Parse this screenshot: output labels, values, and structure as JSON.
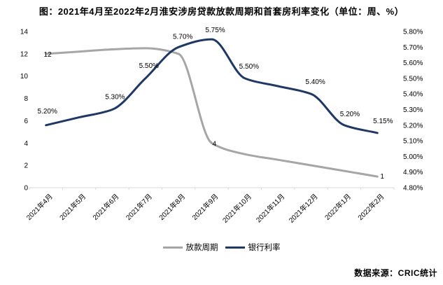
{
  "title": "图：2021年4月至2022年2月淮安涉房贷款放款周期和首套房利率变化（单位：周、%）",
  "source": "数据来源：CRIC统计",
  "legend": {
    "series": [
      {
        "label": "放款周期",
        "color": "#a6a6a6"
      },
      {
        "label": "银行利率",
        "color": "#1f3864"
      }
    ]
  },
  "chart_data": {
    "type": "line",
    "title": "图：2021年4月至2022年2月淮安涉房贷款放款周期和首套房利率变化（单位：周、%）",
    "categories": [
      "2021年4月",
      "2021年5月",
      "2021年6月",
      "2021年7月",
      "2021年8月",
      "2021年9月",
      "2021年10月",
      "2021年11月",
      "2021年12月",
      "2022年1月",
      "2022年2月"
    ],
    "grid": false,
    "legend_position": "bottom",
    "left_axis": {
      "min": 0,
      "max": 14,
      "step": 2,
      "format": "int",
      "ticks": [
        "0",
        "2",
        "4",
        "6",
        "8",
        "10",
        "12",
        "14"
      ]
    },
    "right_axis": {
      "min": 4.8,
      "max": 5.8,
      "step": 0.1,
      "format": "percent2",
      "ticks": [
        "4.80%",
        "4.90%",
        "5.00%",
        "5.10%",
        "5.20%",
        "5.30%",
        "5.40%",
        "5.50%",
        "5.60%",
        "5.70%",
        "5.80%"
      ]
    },
    "series": [
      {
        "name": "放款周期",
        "axis": "left",
        "color": "#a6a6a6",
        "unit": "周",
        "values": [
          12,
          12.2,
          12.4,
          12.5,
          12,
          4,
          3,
          2.5,
          2,
          1.5,
          1
        ],
        "labels": [
          {
            "i": 0,
            "text": "12",
            "dx": 8,
            "dy": 4,
            "anchor": "end"
          },
          {
            "i": 5,
            "text": "4",
            "dx": 1,
            "dy": 4,
            "anchor": "start"
          },
          {
            "i": 10,
            "text": "1",
            "dx": 4,
            "dy": 3,
            "anchor": "start"
          }
        ]
      },
      {
        "name": "银行利率",
        "axis": "right",
        "color": "#1f3864",
        "unit": "%",
        "values": [
          5.2,
          5.25,
          5.3,
          5.5,
          5.7,
          5.75,
          5.5,
          5.45,
          5.4,
          5.2,
          5.15
        ],
        "labels": [
          {
            "i": 0,
            "text": "5.20%",
            "dx": 2,
            "dy": -17,
            "anchor": "middle"
          },
          {
            "i": 2,
            "text": "5.30%",
            "dx": 4,
            "dy": -15,
            "anchor": "middle"
          },
          {
            "i": 3,
            "text": "5.50%",
            "dx": 5,
            "dy": -15,
            "anchor": "middle"
          },
          {
            "i": 4,
            "text": "5.70%",
            "dx": 6,
            "dy": -12,
            "anchor": "middle"
          },
          {
            "i": 5,
            "text": "5.75%",
            "dx": 5,
            "dy": -10,
            "anchor": "middle"
          },
          {
            "i": 6,
            "text": "5.50%",
            "dx": 6,
            "dy": -14,
            "anchor": "middle"
          },
          {
            "i": 8,
            "text": "5.40%",
            "dx": 6,
            "dy": -14,
            "anchor": "middle"
          },
          {
            "i": 9,
            "text": "5.20%",
            "dx": 8,
            "dy": -13,
            "anchor": "middle"
          },
          {
            "i": 10,
            "text": "5.15%",
            "dx": 8,
            "dy": -14,
            "anchor": "middle"
          }
        ]
      }
    ]
  }
}
